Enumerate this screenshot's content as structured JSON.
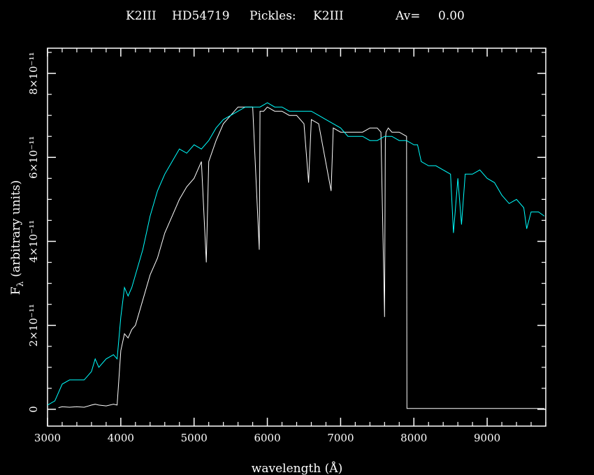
{
  "chart_data": {
    "type": "line",
    "title_parts": [
      "K2III",
      "HD54719",
      "Pickles:",
      "K2III",
      "Av=",
      "0.00"
    ],
    "xlabel": "wavelength (Å)",
    "ylabel_main": "F",
    "ylabel_sub": "λ",
    "ylabel_rest": "(arbitrary units)",
    "xlim": [
      3000,
      9800
    ],
    "ylim": [
      -4e-12,
      8.6e-11
    ],
    "x_ticks": [
      3000,
      4000,
      5000,
      6000,
      7000,
      8000,
      9000
    ],
    "x_tick_labels": [
      "3000",
      "4000",
      "5000",
      "6000",
      "7000",
      "8000",
      "9000"
    ],
    "y_ticks": [
      0,
      2e-11,
      4e-11,
      6e-11,
      8e-11
    ],
    "y_tick_labels": [
      "0",
      "2×10⁻¹¹",
      "4×10⁻¹¹",
      "6×10⁻¹¹",
      "8×10⁻¹¹"
    ],
    "grid": false,
    "colors": {
      "background": "#000000",
      "axes": "#ffffff",
      "observed": "#ffffff",
      "template": "#00ffff"
    },
    "series": [
      {
        "key": "observed",
        "color": "#ffffff",
        "x": [
          3150,
          3200,
          3300,
          3400,
          3500,
          3600,
          3650,
          3700,
          3800,
          3900,
          3950,
          4000,
          4050,
          4100,
          4150,
          4200,
          4300,
          4400,
          4500,
          4600,
          4700,
          4800,
          4900,
          5000,
          5100,
          5167,
          5200,
          5300,
          5400,
          5500,
          5600,
          5700,
          5800,
          5890,
          5900,
          5950,
          6000,
          6100,
          6200,
          6300,
          6400,
          6500,
          6563,
          6600,
          6700,
          6870,
          6900,
          7000,
          7100,
          7200,
          7300,
          7400,
          7500,
          7550,
          7600,
          7610,
          7620,
          7650,
          7700,
          7800,
          7900,
          7905,
          8000,
          8500,
          9000,
          9500,
          9780
        ],
        "y": [
          4e-13,
          6e-13,
          5e-13,
          6e-13,
          5e-13,
          1e-12,
          1.2e-12,
          1e-12,
          8e-13,
          1.2e-12,
          1e-12,
          1.4e-11,
          1.8e-11,
          1.7e-11,
          1.9e-11,
          2e-11,
          2.6e-11,
          3.2e-11,
          3.6e-11,
          4.2e-11,
          4.6e-11,
          5e-11,
          5.3e-11,
          5.5e-11,
          5.9e-11,
          3.5e-11,
          5.9e-11,
          6.4e-11,
          6.8e-11,
          7e-11,
          7.2e-11,
          7.2e-11,
          7.2e-11,
          3.8e-11,
          7.1e-11,
          7.1e-11,
          7.2e-11,
          7.1e-11,
          7.1e-11,
          7e-11,
          7e-11,
          6.8e-11,
          5.4e-11,
          6.9e-11,
          6.8e-11,
          5.2e-11,
          6.7e-11,
          6.6e-11,
          6.6e-11,
          6.6e-11,
          6.6e-11,
          6.7e-11,
          6.7e-11,
          6.6e-11,
          2.2e-11,
          6.4e-11,
          6.6e-11,
          6.7e-11,
          6.6e-11,
          6.6e-11,
          6.5e-11,
          2e-13,
          2e-13,
          2e-13,
          2e-13,
          2e-13,
          2e-13
        ]
      },
      {
        "key": "template",
        "color": "#00ffff",
        "x": [
          3000,
          3100,
          3200,
          3300,
          3400,
          3500,
          3600,
          3650,
          3700,
          3800,
          3900,
          3950,
          4000,
          4050,
          4100,
          4150,
          4200,
          4300,
          4400,
          4500,
          4600,
          4700,
          4800,
          4900,
          5000,
          5100,
          5200,
          5300,
          5400,
          5500,
          5600,
          5700,
          5800,
          5900,
          6000,
          6100,
          6200,
          6300,
          6400,
          6500,
          6600,
          6700,
          6800,
          6900,
          7000,
          7100,
          7200,
          7300,
          7400,
          7500,
          7600,
          7700,
          7800,
          7900,
          8000,
          8050,
          8100,
          8200,
          8300,
          8400,
          8500,
          8540,
          8600,
          8650,
          8700,
          8800,
          8900,
          9000,
          9100,
          9200,
          9300,
          9400,
          9500,
          9540,
          9600,
          9700,
          9780
        ],
        "y": [
          1e-12,
          2e-12,
          6e-12,
          7e-12,
          7e-12,
          7e-12,
          9e-12,
          1.2e-11,
          1e-11,
          1.2e-11,
          1.3e-11,
          1.2e-11,
          2.2e-11,
          2.9e-11,
          2.7e-11,
          2.9e-11,
          3.2e-11,
          3.8e-11,
          4.6e-11,
          5.2e-11,
          5.6e-11,
          5.9e-11,
          6.2e-11,
          6.1e-11,
          6.3e-11,
          6.2e-11,
          6.4e-11,
          6.7e-11,
          6.9e-11,
          7e-11,
          7.1e-11,
          7.2e-11,
          7.2e-11,
          7.2e-11,
          7.3e-11,
          7.2e-11,
          7.2e-11,
          7.1e-11,
          7.1e-11,
          7.1e-11,
          7.1e-11,
          7e-11,
          6.9e-11,
          6.8e-11,
          6.7e-11,
          6.5e-11,
          6.5e-11,
          6.5e-11,
          6.4e-11,
          6.4e-11,
          6.5e-11,
          6.5e-11,
          6.4e-11,
          6.4e-11,
          6.3e-11,
          6.3e-11,
          5.9e-11,
          5.8e-11,
          5.8e-11,
          5.7e-11,
          5.6e-11,
          4.2e-11,
          5.5e-11,
          4.4e-11,
          5.6e-11,
          5.6e-11,
          5.7e-11,
          5.5e-11,
          5.4e-11,
          5.1e-11,
          4.9e-11,
          5e-11,
          4.8e-11,
          4.3e-11,
          4.7e-11,
          4.7e-11,
          4.6e-11
        ]
      }
    ]
  }
}
